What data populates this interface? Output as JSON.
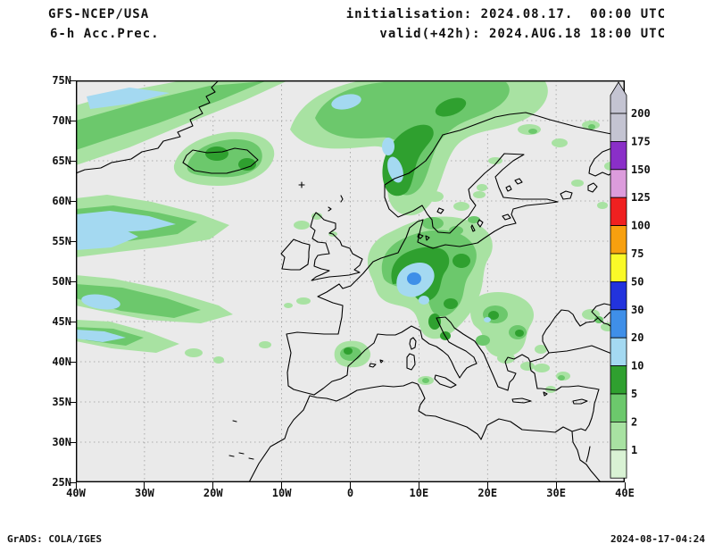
{
  "header": {
    "model": "GFS-NCEP/USA",
    "product": "6-h Acc.Prec.",
    "init": "initialisation: 2024.08.17.  00:00 UTC",
    "valid": "valid(+42h): 2024.AUG.18 18:00 UTC"
  },
  "axes": {
    "lat_ticks": [
      "75N",
      "70N",
      "65N",
      "60N",
      "55N",
      "50N",
      "45N",
      "40N",
      "35N",
      "30N",
      "25N"
    ],
    "lon_ticks": [
      "40W",
      "30W",
      "20W",
      "10W",
      "0",
      "10E",
      "20E",
      "30E",
      "40E"
    ]
  },
  "colorbar": {
    "unit_labels_top_to_bottom": [
      "200",
      "175",
      "150",
      "125",
      "100",
      "75",
      "50",
      "30",
      "20",
      "10",
      "5",
      "2",
      "1"
    ],
    "segment_colors_top_to_bottom": [
      "#c4c4d2",
      "#8a2fc8",
      "#dc9cdc",
      "#f02020",
      "#f7a00f",
      "#fafa28",
      "#2233dd",
      "#3f8fe8",
      "#a4d9f1",
      "#2fa02f",
      "#6cc86c",
      "#a8e2a2",
      "#d9f2d4"
    ],
    "arrow_color": "#c4c4d2"
  },
  "colors": {
    "map_bg": "#eaeaea",
    "coastline": "#000000",
    "grid": "#9a9a9a",
    "text": "#111111"
  },
  "footer": {
    "left": "GrADS: COLA/IGES",
    "right": "2024-08-17-04:24"
  }
}
